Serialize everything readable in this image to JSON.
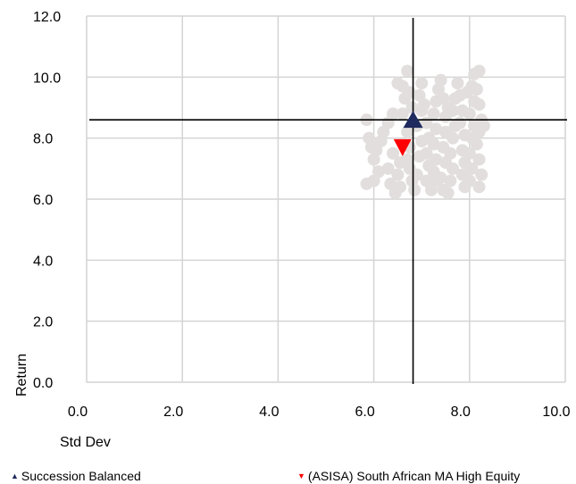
{
  "chart_data": {
    "type": "scatter",
    "xlabel": "Std Dev",
    "ylabel": "Return",
    "xlim": [
      0,
      10
    ],
    "ylim": [
      0,
      12
    ],
    "x_ticks": [
      "0.0",
      "2.0",
      "4.0",
      "6.0",
      "8.0",
      "10.0"
    ],
    "y_ticks": [
      "0.0",
      "2.0",
      "4.0",
      "6.0",
      "8.0",
      "10.0",
      "12.0"
    ],
    "grid": true,
    "crosshair": {
      "x": 6.82,
      "y": 8.6
    },
    "peer_points": [
      [
        5.85,
        8.6
      ],
      [
        5.9,
        8.0
      ],
      [
        5.95,
        7.7
      ],
      [
        5.85,
        6.5
      ],
      [
        6.0,
        6.6
      ],
      [
        6.1,
        6.9
      ],
      [
        6.05,
        7.6
      ],
      [
        6.15,
        7.9
      ],
      [
        6.3,
        8.5
      ],
      [
        6.4,
        8.8
      ],
      [
        6.45,
        6.2
      ],
      [
        6.35,
        6.5
      ],
      [
        6.5,
        6.8
      ],
      [
        6.55,
        7.2
      ],
      [
        6.3,
        7.0
      ],
      [
        6.6,
        9.7
      ],
      [
        6.65,
        9.3
      ],
      [
        6.5,
        9.8
      ],
      [
        6.7,
        10.2
      ],
      [
        6.75,
        9.5
      ],
      [
        6.8,
        9.0
      ],
      [
        6.7,
        8.2
      ],
      [
        6.75,
        7.7
      ],
      [
        6.7,
        7.3
      ],
      [
        6.75,
        7.0
      ],
      [
        6.8,
        6.6
      ],
      [
        6.85,
        6.3
      ],
      [
        6.9,
        6.8
      ],
      [
        6.95,
        7.4
      ],
      [
        7.0,
        7.9
      ],
      [
        6.9,
        8.4
      ],
      [
        7.0,
        8.9
      ],
      [
        6.95,
        9.4
      ],
      [
        7.0,
        9.8
      ],
      [
        7.05,
        9.1
      ],
      [
        7.1,
        8.5
      ],
      [
        7.15,
        8.0
      ],
      [
        7.1,
        7.5
      ],
      [
        7.15,
        7.1
      ],
      [
        7.1,
        6.6
      ],
      [
        7.2,
        6.3
      ],
      [
        7.25,
        6.9
      ],
      [
        7.3,
        7.3
      ],
      [
        7.25,
        7.8
      ],
      [
        7.3,
        8.3
      ],
      [
        7.25,
        8.8
      ],
      [
        7.3,
        9.2
      ],
      [
        7.35,
        9.6
      ],
      [
        7.4,
        9.9
      ],
      [
        7.45,
        9.3
      ],
      [
        7.5,
        8.7
      ],
      [
        7.5,
        8.2
      ],
      [
        7.45,
        7.7
      ],
      [
        7.5,
        7.2
      ],
      [
        7.4,
        6.7
      ],
      [
        7.45,
        6.3
      ],
      [
        7.55,
        6.2
      ],
      [
        7.6,
        6.6
      ],
      [
        7.65,
        7.0
      ],
      [
        7.6,
        7.5
      ],
      [
        7.65,
        8.0
      ],
      [
        7.7,
        8.4
      ],
      [
        7.65,
        8.9
      ],
      [
        7.7,
        9.3
      ],
      [
        7.75,
        9.8
      ],
      [
        7.8,
        9.4
      ],
      [
        7.85,
        8.9
      ],
      [
        7.8,
        8.5
      ],
      [
        7.9,
        8.1
      ],
      [
        7.85,
        7.6
      ],
      [
        7.9,
        7.2
      ],
      [
        7.85,
        6.8
      ],
      [
        7.9,
        6.4
      ],
      [
        8.0,
        6.6
      ],
      [
        8.05,
        7.0
      ],
      [
        8.0,
        7.5
      ],
      [
        8.05,
        8.0
      ],
      [
        8.1,
        8.4
      ],
      [
        8.0,
        8.8
      ],
      [
        8.1,
        9.2
      ],
      [
        8.05,
        9.7
      ],
      [
        8.1,
        10.1
      ],
      [
        8.2,
        10.2
      ],
      [
        8.15,
        9.6
      ],
      [
        8.2,
        9.1
      ],
      [
        8.25,
        8.6
      ],
      [
        8.2,
        8.2
      ],
      [
        8.15,
        7.8
      ],
      [
        8.2,
        7.3
      ],
      [
        8.25,
        6.8
      ],
      [
        8.2,
        6.4
      ],
      [
        8.3,
        8.4
      ],
      [
        6.2,
        8.2
      ],
      [
        6.4,
        7.5
      ],
      [
        6.6,
        8.8
      ],
      [
        7.3,
        6.6
      ],
      [
        6.0,
        7.3
      ],
      [
        6.55,
        6.4
      ],
      [
        7.95,
        9.5
      ],
      [
        7.55,
        9.0
      ]
    ],
    "series": [
      {
        "name": "Succession Balanced",
        "x": 6.82,
        "y": 8.6,
        "marker": "triangle-up",
        "color": "#1f2a5e"
      },
      {
        "name": "(ASISA) South African MA High Equity",
        "x": 6.6,
        "y": 7.7,
        "marker": "triangle-down",
        "color": "#ff0000"
      }
    ]
  },
  "legend": {
    "item1": {
      "label": "Succession Balanced",
      "color": "#1f2a5e"
    },
    "item2": {
      "label": "(ASISA) South African MA High Equity",
      "color": "#ff0000"
    }
  },
  "colors": {
    "peer": "#e2dedd",
    "grid": "#d4d4d4",
    "crosshair": "#000000"
  }
}
